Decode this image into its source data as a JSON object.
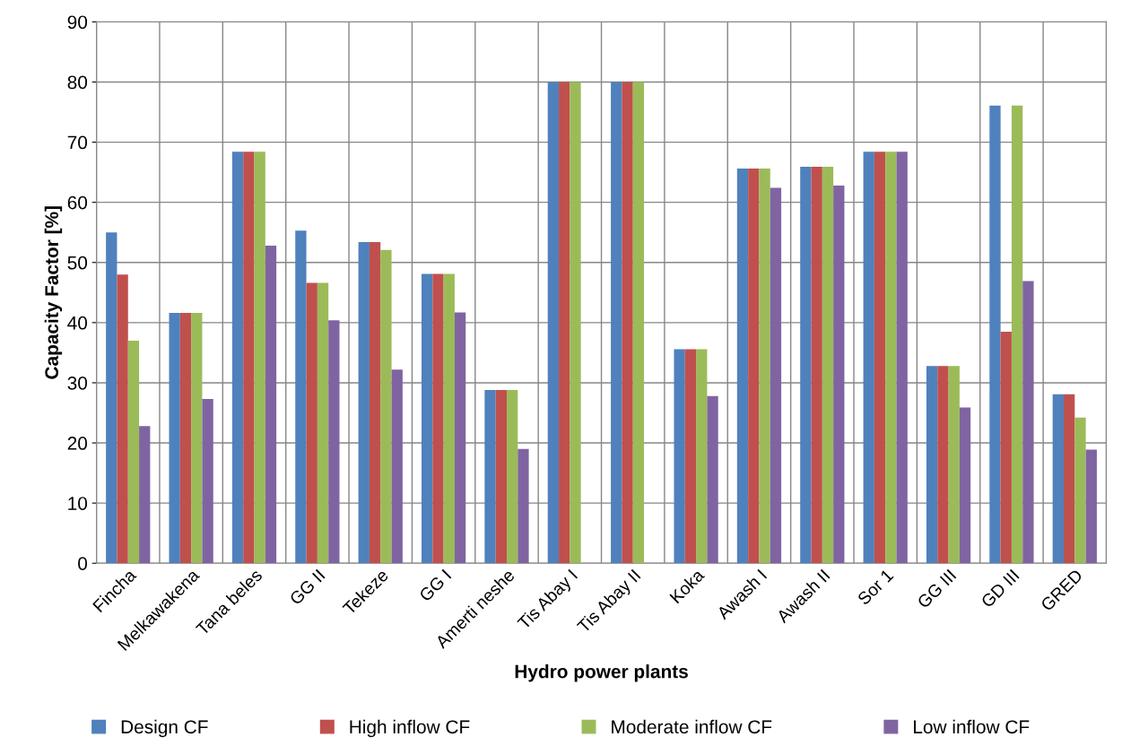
{
  "chart_data": {
    "type": "bar",
    "xlabel": "Hydro power plants",
    "ylabel": "Capacity Factor [%]",
    "categories": [
      "Fincha",
      "Melkawakena",
      "Tana beles",
      "GG II",
      "Tekeze",
      "GG I",
      "Amerti neshe",
      "Tis Abay I",
      "Tis Abay II",
      "Koka",
      "Awash I",
      "Awash II",
      "Sor 1",
      "GG III",
      "GD III",
      "GRED"
    ],
    "series": [
      {
        "name": "Design CF",
        "color": "#4f81bd",
        "values": [
          55,
          41.6,
          68.4,
          55.3,
          53.4,
          48.1,
          28.8,
          80,
          80,
          35.6,
          65.6,
          65.9,
          68.4,
          32.8,
          76.1,
          28.1
        ]
      },
      {
        "name": "High inflow CF",
        "color": "#c0504d",
        "values": [
          48,
          41.6,
          68.4,
          46.6,
          53.4,
          48.1,
          28.8,
          80,
          80,
          35.6,
          65.6,
          65.9,
          68.4,
          32.8,
          38.5,
          28.1
        ]
      },
      {
        "name": "Moderate inflow CF",
        "color": "#9bbb59",
        "values": [
          37,
          41.6,
          68.4,
          46.6,
          52.1,
          48.1,
          28.8,
          80,
          80,
          35.6,
          65.6,
          65.9,
          68.4,
          32.8,
          76.1,
          24.2
        ]
      },
      {
        "name": "Low inflow CF",
        "color": "#8064a2",
        "values": [
          22.8,
          27.3,
          52.8,
          40.4,
          32.2,
          41.7,
          19,
          null,
          null,
          27.8,
          62.4,
          62.8,
          68.4,
          25.9,
          46.9,
          18.9
        ]
      }
    ],
    "ylim": [
      0,
      90
    ],
    "yticks": [
      0,
      10,
      20,
      30,
      40,
      50,
      60,
      70,
      80,
      90
    ],
    "grid": true,
    "legend": "bottom"
  }
}
